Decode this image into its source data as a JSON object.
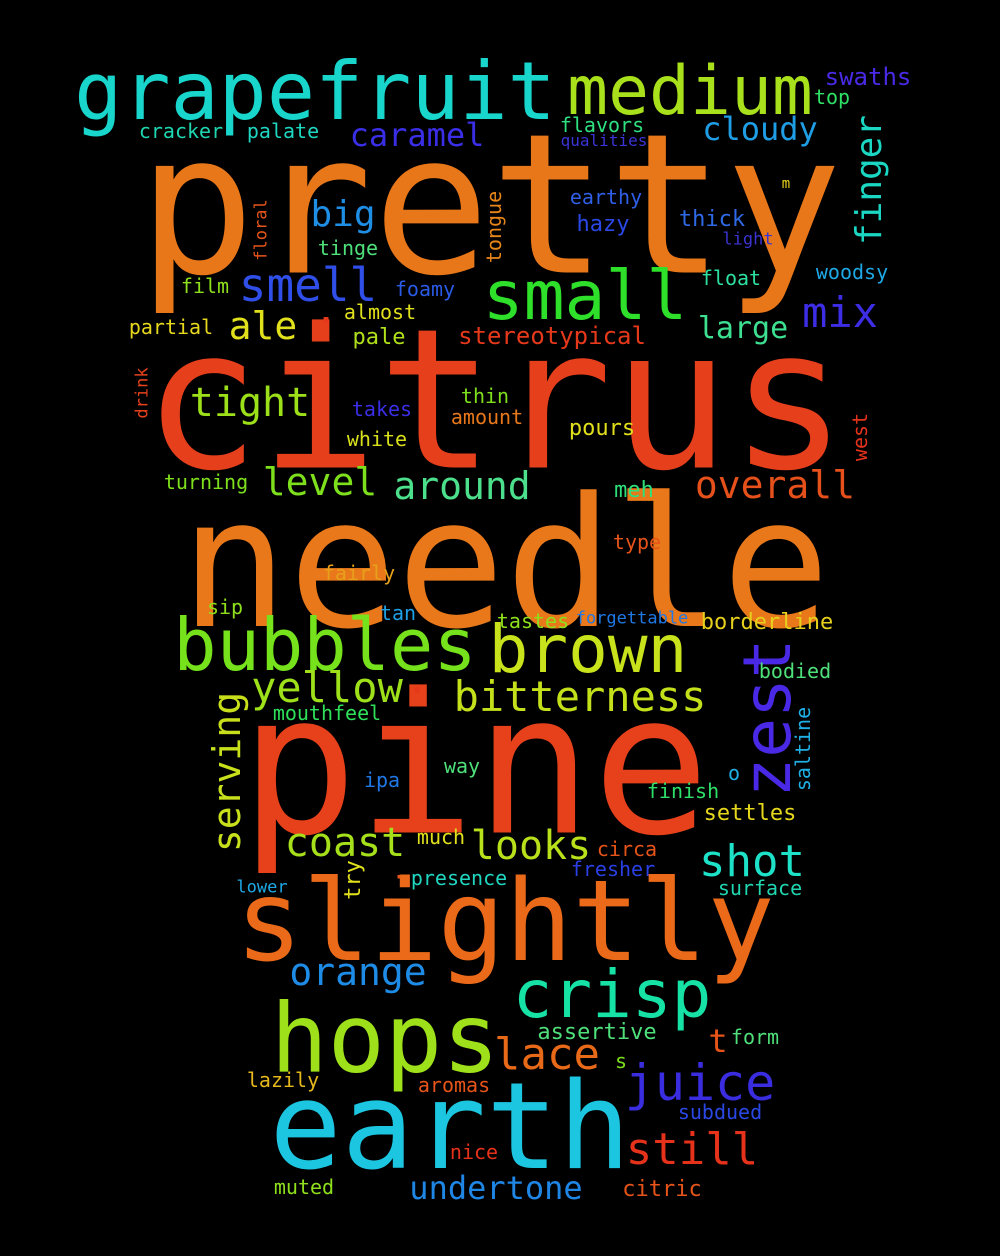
{
  "words": [
    {
      "text": "pretty",
      "color": "#e8771a"
    },
    {
      "text": "citrus",
      "color": "#e63f1b"
    },
    {
      "text": "needle",
      "color": "#e8781a"
    },
    {
      "text": "pine",
      "color": "#e6411b"
    },
    {
      "text": "slightly",
      "color": "#ea6a19"
    },
    {
      "text": "earth",
      "color": "#1dc6e0"
    },
    {
      "text": "hops",
      "color": "#9ee11a"
    },
    {
      "text": "grapefruit",
      "color": "#19d6cc"
    },
    {
      "text": "medium",
      "color": "#a8e01b"
    },
    {
      "text": "small",
      "color": "#2ee02a"
    },
    {
      "text": "bubbles",
      "color": "#76e21c"
    },
    {
      "text": "brown",
      "color": "#c8e21b"
    },
    {
      "text": "crisp",
      "color": "#17e2a6"
    },
    {
      "text": "zest",
      "color": "#4a29e6"
    },
    {
      "text": "bitterness",
      "color": "#c4e01b"
    },
    {
      "text": "yellow",
      "color": "#9ee01a"
    },
    {
      "text": "juice",
      "color": "#3a2de0"
    },
    {
      "text": "still",
      "color": "#e6321b"
    },
    {
      "text": "shot",
      "color": "#1ee2c8"
    },
    {
      "text": "looks",
      "color": "#b8e01b"
    },
    {
      "text": "coast",
      "color": "#a6e01a"
    },
    {
      "text": "orange",
      "color": "#1e8ce6"
    },
    {
      "text": "lace",
      "color": "#e86a19"
    },
    {
      "text": "smell",
      "color": "#2f4fe8"
    },
    {
      "text": "mix",
      "color": "#3d2ee6"
    },
    {
      "text": "tight",
      "color": "#9ce01a"
    },
    {
      "text": "around",
      "color": "#4ce08c"
    },
    {
      "text": "overall",
      "color": "#e6501a"
    },
    {
      "text": "level",
      "color": "#7ee01c"
    },
    {
      "text": "serving",
      "color": "#c8e01b"
    },
    {
      "text": "finger",
      "color": "#1ad6c2"
    },
    {
      "text": "ale",
      "color": "#e0e01c"
    },
    {
      "text": "big",
      "color": "#1f8fe6"
    },
    {
      "text": "cloudy",
      "color": "#1f9ee6"
    },
    {
      "text": "caramel",
      "color": "#3a2ee6"
    },
    {
      "text": "large",
      "color": "#3ce090"
    },
    {
      "text": "undertone",
      "color": "#1f86e6"
    },
    {
      "text": "stereotypical",
      "color": "#e6391b"
    },
    {
      "text": "swaths",
      "color": "#4a2ae6"
    },
    {
      "text": "top",
      "color": "#2ee066"
    },
    {
      "text": "cracker",
      "color": "#1fd6b0"
    },
    {
      "text": "palate",
      "color": "#1fd6c0"
    },
    {
      "text": "flavors",
      "color": "#2ee080"
    },
    {
      "text": "qualities",
      "color": "#3b34d6"
    },
    {
      "text": "earthy",
      "color": "#2f5fe6"
    },
    {
      "text": "hazy",
      "color": "#2a48e6"
    },
    {
      "text": "thick",
      "color": "#2f6ae6"
    },
    {
      "text": "light",
      "color": "#3a33d0"
    },
    {
      "text": "m",
      "color": "#e6d01c"
    },
    {
      "text": "floral",
      "color": "#e6541a"
    },
    {
      "text": "tongue",
      "color": "#e8861a"
    },
    {
      "text": "tinge",
      "color": "#4ee07a"
    },
    {
      "text": "film",
      "color": "#8ee01c"
    },
    {
      "text": "foamy",
      "color": "#2a5ae6"
    },
    {
      "text": "float",
      "color": "#2ee0a0"
    },
    {
      "text": "woodsy",
      "color": "#1fa8e6"
    },
    {
      "text": "partial",
      "color": "#e6d81c"
    },
    {
      "text": "almost",
      "color": "#e0e01c"
    },
    {
      "text": "pale",
      "color": "#b0e01b"
    },
    {
      "text": "drink",
      "color": "#e6411b"
    },
    {
      "text": "thin",
      "color": "#7ee01c"
    },
    {
      "text": "takes",
      "color": "#3a2ee6"
    },
    {
      "text": "amount",
      "color": "#e8781a"
    },
    {
      "text": "pours",
      "color": "#e0e01c"
    },
    {
      "text": "white",
      "color": "#d8e01b"
    },
    {
      "text": "west",
      "color": "#e6321b"
    },
    {
      "text": "turning",
      "color": "#7ee01c"
    },
    {
      "text": "meh",
      "color": "#2ee07a"
    },
    {
      "text": "type",
      "color": "#e6541a"
    },
    {
      "text": "fairly",
      "color": "#e6a01a"
    },
    {
      "text": "sip",
      "color": "#8ee01c"
    },
    {
      "text": "tan",
      "color": "#1fa0e6"
    },
    {
      "text": "tastes",
      "color": "#8ee01c"
    },
    {
      "text": "forgettable",
      "color": "#1f78e6"
    },
    {
      "text": "borderline",
      "color": "#e6d01c"
    },
    {
      "text": "bodied",
      "color": "#4ee07a"
    },
    {
      "text": "mouthfeel",
      "color": "#2ee05a"
    },
    {
      "text": "saltine",
      "color": "#1fb0e6"
    },
    {
      "text": "o",
      "color": "#1fb0e6"
    },
    {
      "text": "ipa",
      "color": "#1f78e6"
    },
    {
      "text": "way",
      "color": "#4ee07a"
    },
    {
      "text": "finish",
      "color": "#2ee06a"
    },
    {
      "text": "settles",
      "color": "#e6d81c"
    },
    {
      "text": "much",
      "color": "#e0e01c"
    },
    {
      "text": "circa",
      "color": "#e6541a"
    },
    {
      "text": "fresher",
      "color": "#2a40e6"
    },
    {
      "text": "try",
      "color": "#e0e01c"
    },
    {
      "text": "presence",
      "color": "#1fd6c0"
    },
    {
      "text": "lower",
      "color": "#1fa8e6"
    },
    {
      "text": "surface",
      "color": "#1fd6b0"
    },
    {
      "text": "assertive",
      "color": "#4ee07a"
    },
    {
      "text": "t",
      "color": "#e6541a"
    },
    {
      "text": "form",
      "color": "#4ee07a"
    },
    {
      "text": "s",
      "color": "#7ee01c"
    },
    {
      "text": "lazily",
      "color": "#e6b81c"
    },
    {
      "text": "aromas",
      "color": "#e6541a"
    },
    {
      "text": "subdued",
      "color": "#2a48e6"
    },
    {
      "text": "nice",
      "color": "#e6321b"
    },
    {
      "text": "muted",
      "color": "#8ee01c"
    },
    {
      "text": "citric",
      "color": "#e6541a"
    },
    {
      "text": "·",
      "color": "#e6391b"
    },
    {
      "text": "·",
      "color": "#e6391b"
    },
    {
      "text": "·",
      "color": "#e6541a"
    }
  ]
}
